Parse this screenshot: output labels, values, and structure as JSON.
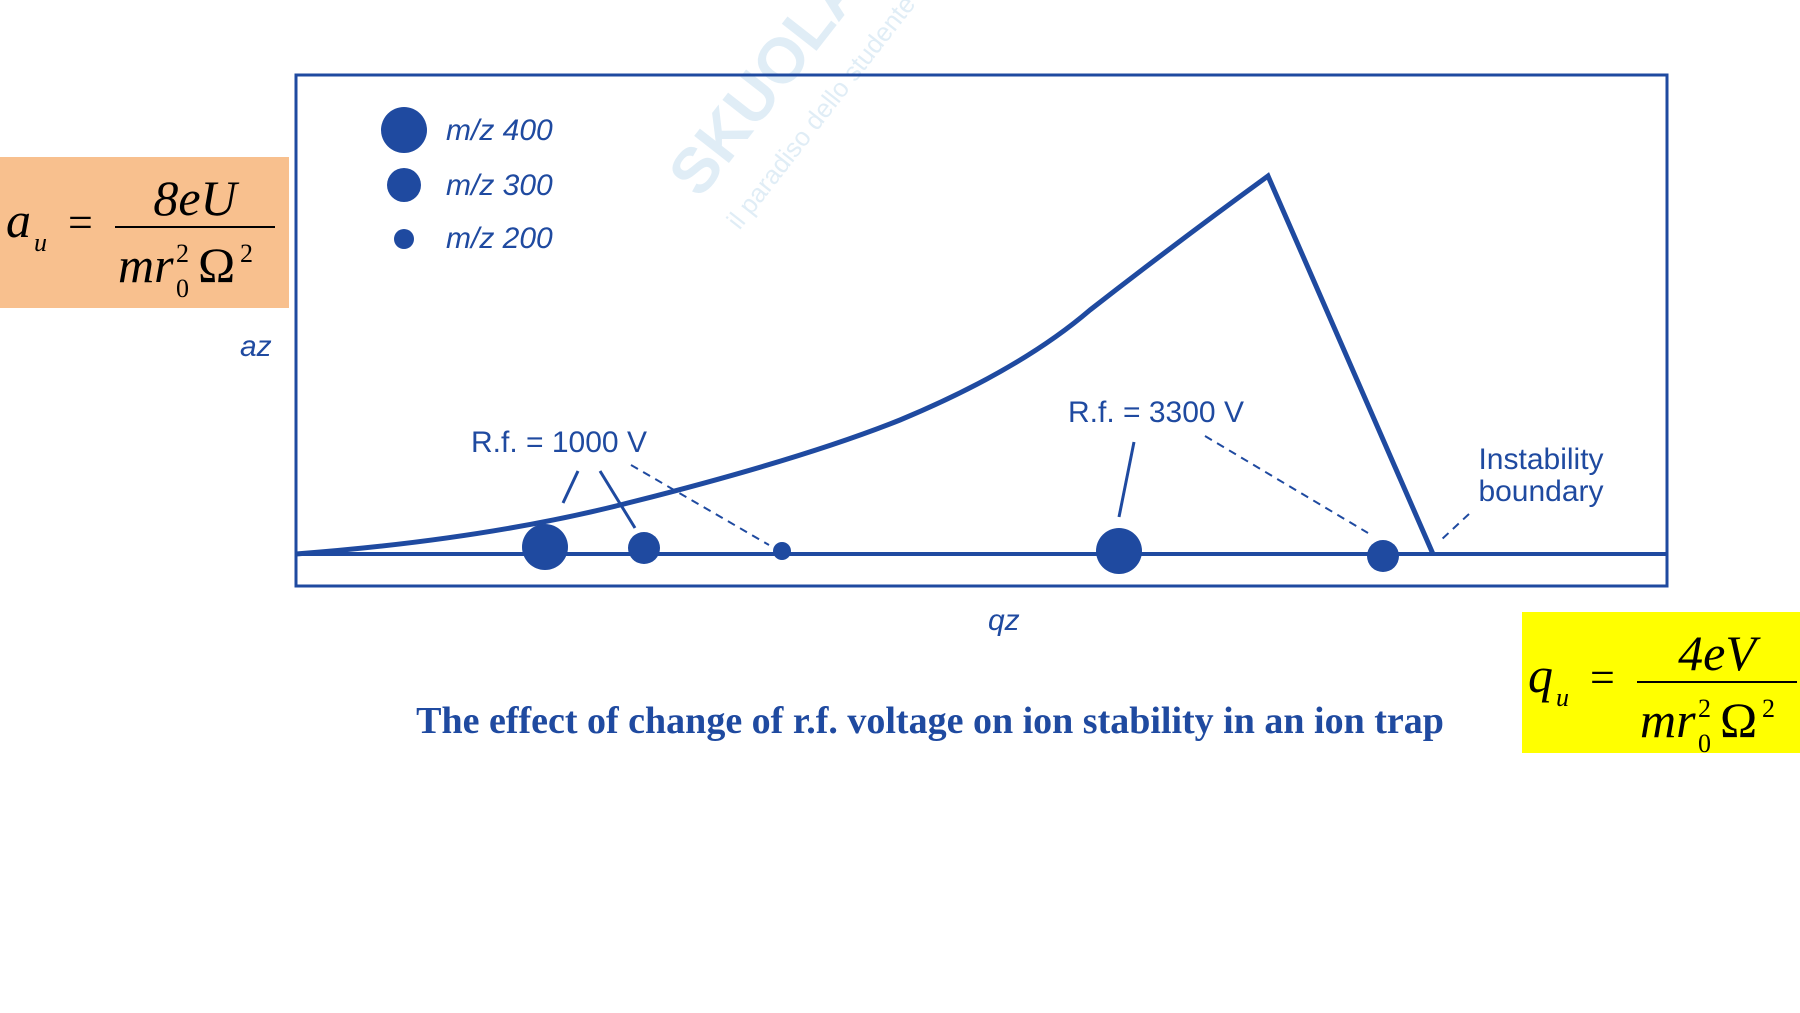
{
  "legend": [
    {
      "label": "m/z 400"
    },
    {
      "label": "m/z 300"
    },
    {
      "label": "m/z 200"
    }
  ],
  "axes": {
    "y_label": "az",
    "x_label": "qz"
  },
  "annotations": {
    "rf_low": "R.f. = 1000 V",
    "rf_high": "R.f. = 3300 V",
    "boundary_line1": "Instability",
    "boundary_line2": "boundary"
  },
  "caption": "The effect of change of r.f. voltage on ion stability in an ion trap",
  "watermark": {
    "brand": "SKUOLA.net",
    "tagline": "il paradiso dello studente"
  },
  "formulas": [
    {
      "symbol": "a",
      "subscript": "u",
      "equals": "=",
      "numerator": "8eU",
      "denominator": {
        "base": "mr",
        "subscript": "0",
        "superscript": "2",
        "omega": "Ω",
        "omega_power": "2"
      }
    },
    {
      "symbol": "q",
      "subscript": "u",
      "equals": "=",
      "numerator": "4eV",
      "denominator": {
        "base": "mr",
        "subscript": "0",
        "superscript": "2",
        "omega": "Ω",
        "omega_power": "2"
      }
    }
  ]
}
